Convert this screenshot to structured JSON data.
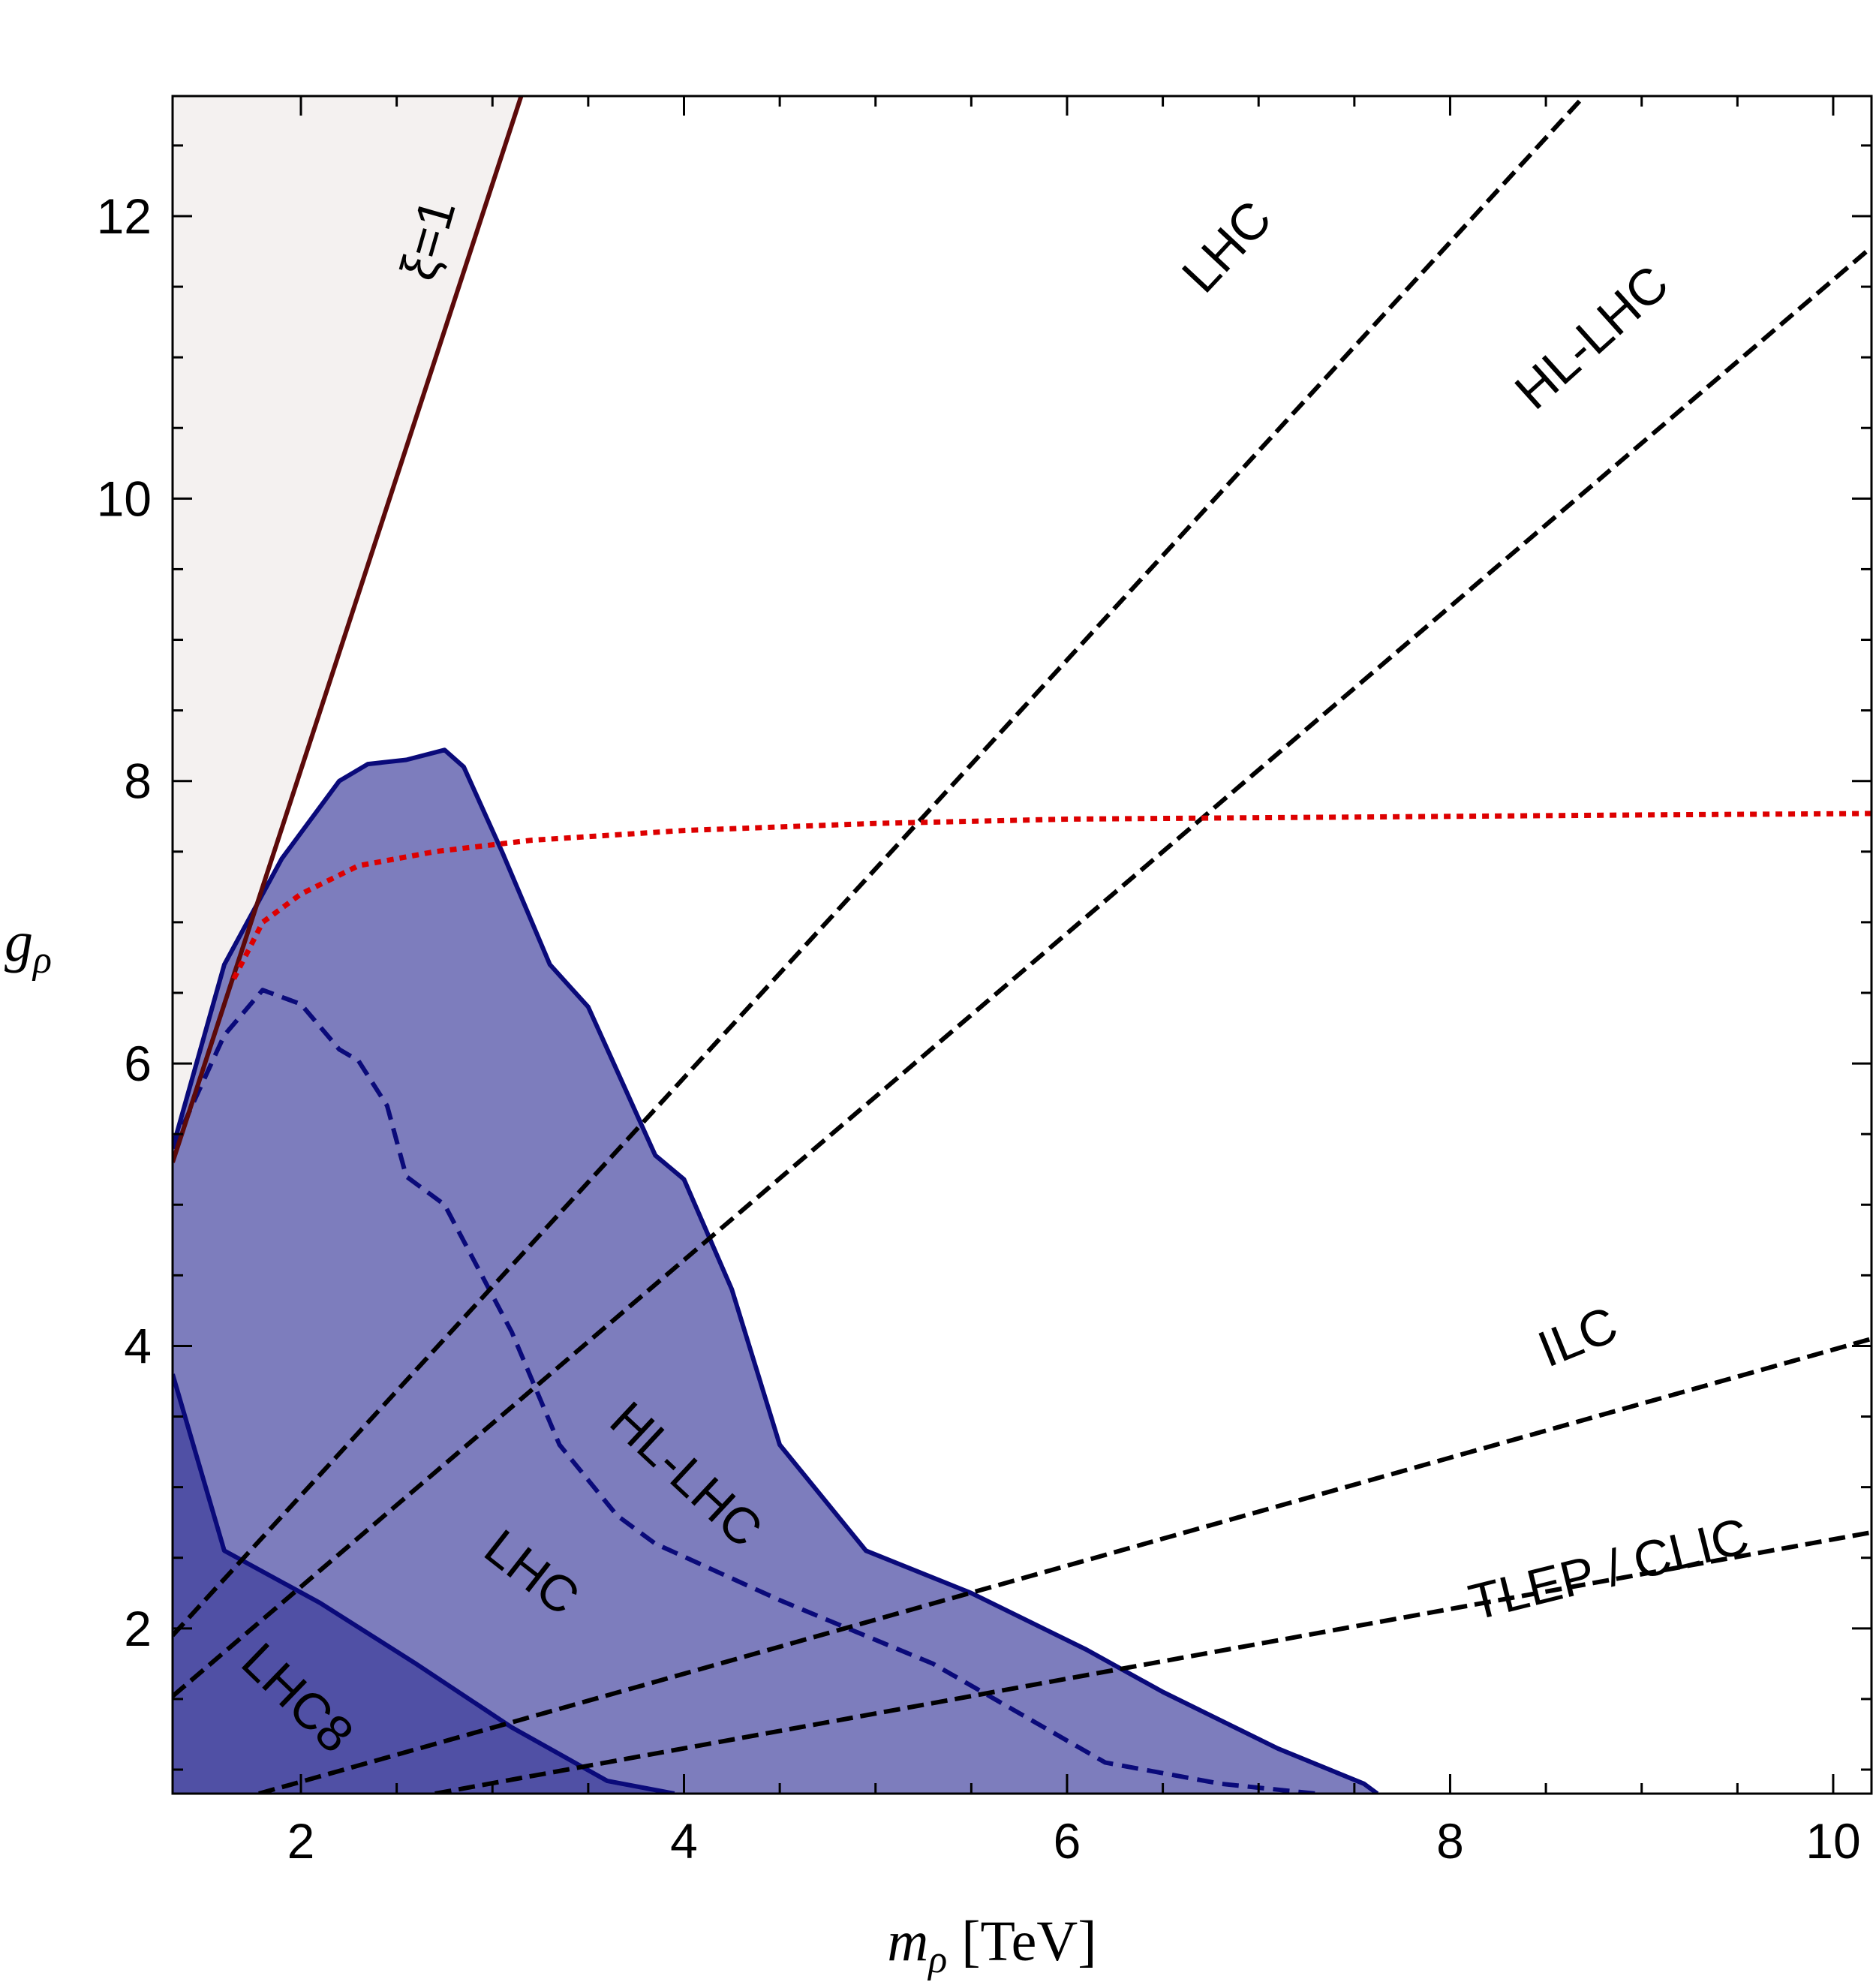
{
  "chart_data": {
    "type": "area",
    "xlabel": {
      "var": "m",
      "sub": "ρ",
      "unit": "[TeV]"
    },
    "ylabel": {
      "var": "g",
      "sub": "ρ"
    },
    "xlim": [
      1.33,
      10.2
    ],
    "ylim": [
      0.83,
      12.85
    ],
    "xticks": [
      2,
      4,
      6,
      8,
      10
    ],
    "yticks": [
      2,
      4,
      6,
      8,
      10,
      12
    ],
    "colors": {
      "region_fill": "#7d7dbd",
      "lhc8_fill": "#5050a5",
      "region_edge": "#0a0a7a",
      "xi_fill": "#f4f1f0",
      "xi_line": "#5c0a0a",
      "red_line": "#dd0000",
      "dashed": "#000000"
    },
    "regions": [
      {
        "name": "HL-LHC",
        "points": [
          [
            1.33,
            5.4
          ],
          [
            1.6,
            6.7
          ],
          [
            1.9,
            7.45
          ],
          [
            2.2,
            8.0
          ],
          [
            2.35,
            8.12
          ],
          [
            2.55,
            8.15
          ],
          [
            2.75,
            8.22
          ],
          [
            2.85,
            8.1
          ],
          [
            3.05,
            7.5
          ],
          [
            3.3,
            6.7
          ],
          [
            3.5,
            6.4
          ],
          [
            3.85,
            5.35
          ],
          [
            4.0,
            5.18
          ],
          [
            4.25,
            4.4
          ],
          [
            4.5,
            3.3
          ],
          [
            4.95,
            2.55
          ],
          [
            5.5,
            2.25
          ],
          [
            6.1,
            1.85
          ],
          [
            6.5,
            1.55
          ],
          [
            7.1,
            1.15
          ],
          [
            7.55,
            0.9
          ],
          [
            7.62,
            0.83
          ]
        ]
      },
      {
        "name": "LHC",
        "points": [
          [
            1.33,
            5.4
          ],
          [
            1.6,
            6.2
          ],
          [
            1.8,
            6.52
          ],
          [
            2.0,
            6.42
          ],
          [
            2.2,
            6.1
          ],
          [
            2.3,
            6.02
          ],
          [
            2.45,
            5.7
          ],
          [
            2.55,
            5.2
          ],
          [
            2.75,
            5.0
          ],
          [
            3.1,
            4.1
          ],
          [
            3.35,
            3.3
          ],
          [
            3.65,
            2.8
          ],
          [
            3.85,
            2.6
          ],
          [
            4.5,
            2.2
          ],
          [
            5.3,
            1.75
          ],
          [
            6.2,
            1.05
          ],
          [
            6.8,
            0.9
          ],
          [
            7.3,
            0.83
          ]
        ]
      },
      {
        "name": "LHC8",
        "points": [
          [
            1.33,
            3.8
          ],
          [
            1.6,
            2.55
          ],
          [
            2.1,
            2.18
          ],
          [
            2.6,
            1.75
          ],
          [
            3.1,
            1.3
          ],
          [
            3.6,
            0.92
          ],
          [
            3.95,
            0.83
          ]
        ]
      }
    ],
    "xi_line": {
      "name": "ξ=1",
      "points": [
        [
          1.33,
          5.3
        ],
        [
          3.15,
          12.85
        ]
      ]
    },
    "red_curve": {
      "points": [
        [
          1.65,
          6.6
        ],
        [
          1.8,
          7.0
        ],
        [
          2.0,
          7.2
        ],
        [
          2.3,
          7.4
        ],
        [
          2.7,
          7.5
        ],
        [
          3.2,
          7.58
        ],
        [
          4.0,
          7.65
        ],
        [
          5.0,
          7.7
        ],
        [
          6.0,
          7.73
        ],
        [
          7.0,
          7.74
        ],
        [
          8.0,
          7.75
        ],
        [
          9.0,
          7.76
        ],
        [
          10.2,
          7.77
        ]
      ]
    },
    "dashed_lines": [
      {
        "name": "LHC",
        "points": [
          [
            1.33,
            1.95
          ],
          [
            8.7,
            12.85
          ]
        ]
      },
      {
        "name": "HL-LHC",
        "points": [
          [
            1.33,
            1.52
          ],
          [
            10.2,
            11.78
          ]
        ]
      },
      {
        "name": "ILC",
        "points": [
          [
            1.78,
            0.83
          ],
          [
            10.2,
            4.05
          ]
        ]
      },
      {
        "name": "TLEP / CLIC",
        "points": [
          [
            2.7,
            0.83
          ],
          [
            10.2,
            2.68
          ]
        ]
      }
    ],
    "annotations": [
      {
        "text": "LHC8",
        "x": 1.92,
        "y": 1.42,
        "rot": 44
      },
      {
        "text": "LHC",
        "x": 3.15,
        "y": 2.3,
        "rot": 38
      },
      {
        "text": "HL-LHC",
        "x": 3.95,
        "y": 3.0,
        "rot": 43
      },
      {
        "text": "LHC",
        "x": 6.9,
        "y": 11.7,
        "rot": -47
      },
      {
        "text": "HL-LHC",
        "x": 8.8,
        "y": 11.05,
        "rot": -42
      },
      {
        "text": "ILC",
        "x": 8.7,
        "y": 3.95,
        "rot": -22
      },
      {
        "text": "TLEP / CLIC",
        "x": 8.85,
        "y": 2.3,
        "rot": -14
      },
      {
        "text": "ξ=1",
        "x": 2.75,
        "y": 11.8,
        "rot": -74
      }
    ]
  }
}
